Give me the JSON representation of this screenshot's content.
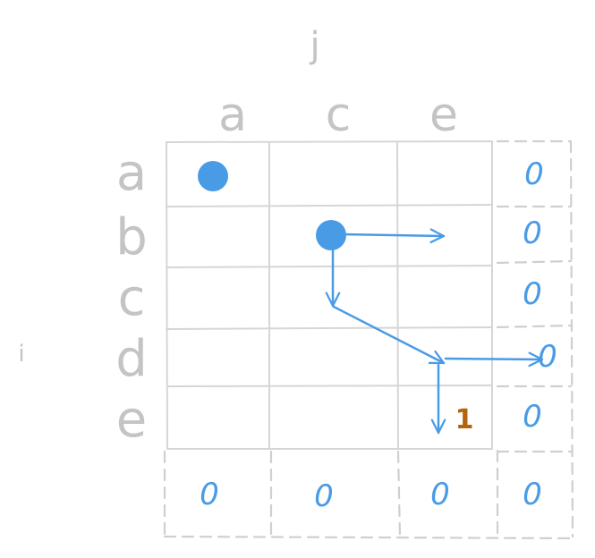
{
  "axes": {
    "column_axis_label": "j",
    "row_axis_label": "i"
  },
  "columns": [
    "a",
    "c",
    "e"
  ],
  "rows": [
    "a",
    "b",
    "c",
    "d",
    "e"
  ],
  "right_column_values": [
    "0",
    "0",
    "0",
    "0",
    "0"
  ],
  "bottom_row_values": [
    "0",
    "0",
    "0",
    "0"
  ],
  "result_label": "1",
  "colors": {
    "grid": "#d6d6d6",
    "dashed": "#cfcfcf",
    "accent_blue": "#4a9be6",
    "result_orange": "#b5640c",
    "label_gray": "#c4c4c4"
  }
}
